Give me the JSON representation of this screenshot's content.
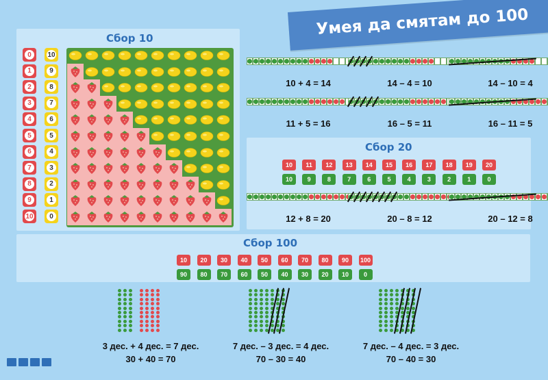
{
  "title": "Умея да смятам до 100",
  "sbor10": {
    "title": "Сбор 10",
    "left_labels": [
      "0",
      "1",
      "2",
      "3",
      "4",
      "5",
      "6",
      "7",
      "8",
      "9",
      "10"
    ],
    "right_labels": [
      "10",
      "9",
      "8",
      "7",
      "6",
      "5",
      "4",
      "3",
      "2",
      "1",
      "0"
    ]
  },
  "equations_top": [
    "10 + 4 = 14",
    "14 – 4 = 10",
    "14 – 10 = 4",
    "11 + 5 = 16",
    "16 – 5 = 11",
    "16 – 11 = 5"
  ],
  "sbor20": {
    "title": "Сбор 20",
    "top": [
      "10",
      "11",
      "12",
      "13",
      "14",
      "15",
      "16",
      "17",
      "18",
      "19",
      "20"
    ],
    "bottom": [
      "10",
      "9",
      "8",
      "7",
      "6",
      "5",
      "4",
      "3",
      "2",
      "1",
      "0"
    ],
    "equations": [
      "12 + 8 = 20",
      "20 – 8 = 12",
      "20 – 12 = 8"
    ]
  },
  "sbor100": {
    "title": "Сбор 100",
    "top": [
      "10",
      "20",
      "30",
      "40",
      "50",
      "60",
      "70",
      "80",
      "90",
      "100"
    ],
    "bottom": [
      "90",
      "80",
      "70",
      "60",
      "50",
      "40",
      "30",
      "20",
      "10",
      "0"
    ],
    "equations": [
      [
        "3 дес. + 4 дес. = 7 дес.",
        "30 + 40 = 70"
      ],
      [
        "7 дес. – 3 дес. = 4 дес.",
        "70 – 30 = 40"
      ],
      [
        "7 дес. – 4 дес. = 3 дес.",
        "70 – 40 = 30"
      ]
    ]
  },
  "colors": {
    "red": "#e2494c",
    "green": "#3a9a3c",
    "yellow": "#f5d31c",
    "blue": "#2f6fb7"
  }
}
